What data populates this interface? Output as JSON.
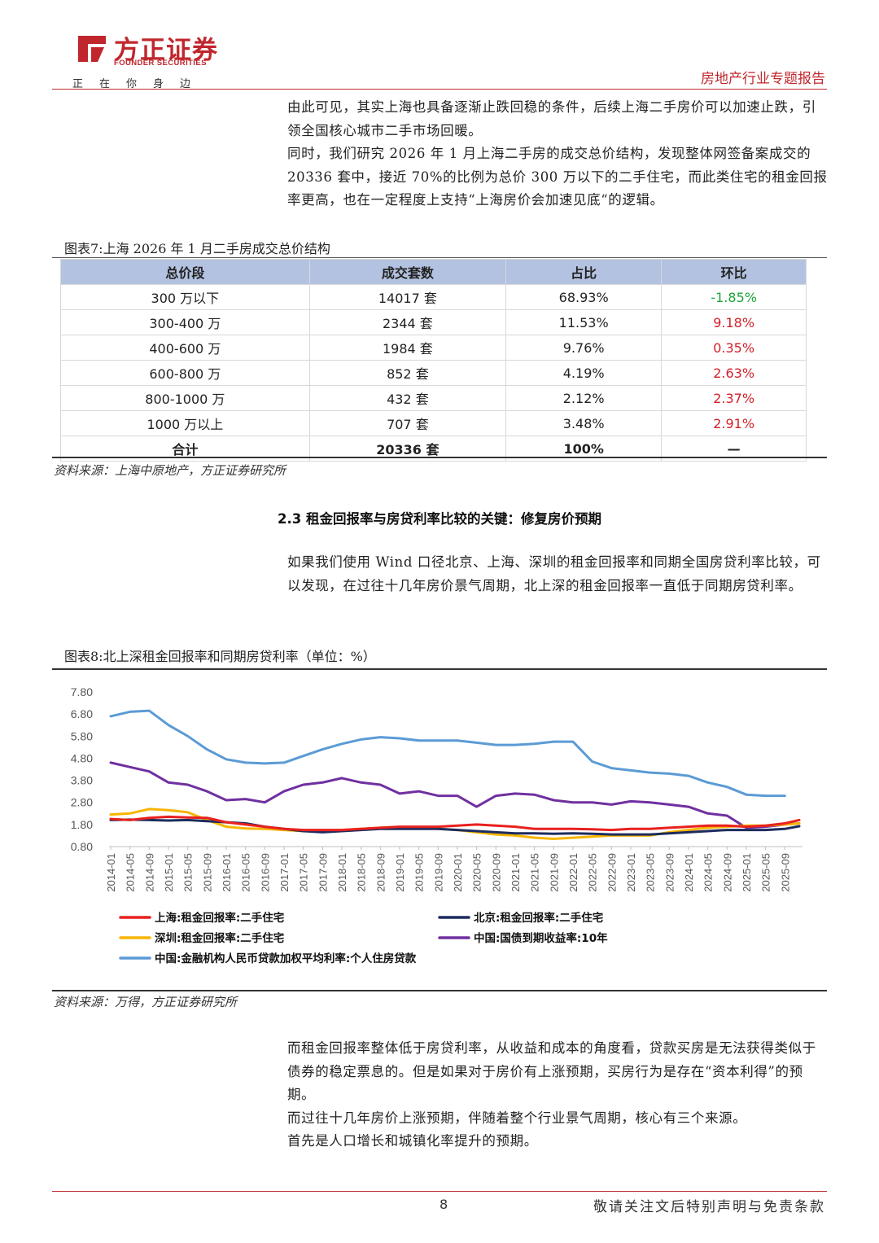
{
  "header": {
    "logo_cn": "方正证券",
    "logo_en": "FOUNDER SECURITIES",
    "slogan": "正在你身边",
    "report_type": "房地产行业专题报告"
  },
  "intro_paragraphs": [
    "由此可见，其实上海也具备逐渐止跌回稳的条件，后续上海二手房价可以加速止跌，引领全国核心城市二手市场回暖。",
    "同时，我们研究 2026 年 1 月上海二手房的成交总价结构，发现整体网签备案成交的 20336 套中，接近 70%的比例为总价 300 万以下的二手住宅，而此类住宅的租金回报率更高，也在一定程度上支持“上海房价会加速见底“的逻辑。"
  ],
  "table7": {
    "caption": "图表7:上海 2026 年 1 月二手房成交总价结构",
    "headers": [
      "总价段",
      "成交套数",
      "占比",
      "环比"
    ],
    "rows": [
      [
        "300 万以下",
        "14017 套",
        "68.93%",
        "-1.85%"
      ],
      [
        "300-400 万",
        "2344 套",
        "11.53%",
        "9.18%"
      ],
      [
        "400-600 万",
        "1984 套",
        "9.76%",
        "0.35%"
      ],
      [
        "600-800 万",
        "852 套",
        "4.19%",
        "2.63%"
      ],
      [
        "800-1000 万",
        "432 套",
        "2.12%",
        "2.37%"
      ],
      [
        "1000 万以上",
        "707 套",
        "3.48%",
        "2.91%"
      ],
      [
        "合计",
        "20336 套",
        "100%",
        "—"
      ]
    ],
    "source": "资料来源：上海中原地产，方正证券研究所"
  },
  "section_heading": "2.3 租金回报率与房贷利率比较的关键：修复房价预期",
  "section_paragraph": "如果我们使用 Wind 口径北京、上海、深圳的租金回报率和同期全国房贷利率比较，可以发现，在过往十几年房价景气周期，北上深的租金回报率一直低于同期房贷利率。",
  "chart8_caption": "图表8:北上深租金回报率和同期房贷利率（单位：%）",
  "chart_data": {
    "type": "line",
    "title": "",
    "xlabel": "",
    "ylabel": "",
    "ylim": [
      0.8,
      7.8
    ],
    "yticks": [
      "7.80",
      "6.80",
      "5.80",
      "4.80",
      "3.80",
      "2.80",
      "1.80",
      "0.80"
    ],
    "x_tick_labels": [
      "2014-01",
      "2014-05",
      "2014-09",
      "2015-01",
      "2015-05",
      "2015-09",
      "2016-01",
      "2016-05",
      "2016-09",
      "2017-01",
      "2017-05",
      "2017-09",
      "2018-01",
      "2018-05",
      "2018-09",
      "2019-01",
      "2019-05",
      "2019-09",
      "2020-01",
      "2020-05",
      "2020-09",
      "2021-01",
      "2021-05",
      "2021-09",
      "2022-01",
      "2022-05",
      "2022-09",
      "2023-01",
      "2023-05",
      "2023-09",
      "2024-01",
      "2024-05",
      "2024-09",
      "2025-01",
      "2025-05",
      "2025-09"
    ],
    "x": [
      "2014-01",
      "2014-05",
      "2014-09",
      "2015-01",
      "2015-05",
      "2015-09",
      "2016-01",
      "2016-05",
      "2016-09",
      "2017-01",
      "2017-05",
      "2017-09",
      "2018-01",
      "2018-05",
      "2018-09",
      "2019-01",
      "2019-05",
      "2019-09",
      "2020-01",
      "2020-05",
      "2020-09",
      "2021-01",
      "2021-05",
      "2021-09",
      "2022-01",
      "2022-05",
      "2022-09",
      "2023-01",
      "2023-05",
      "2023-09",
      "2024-01",
      "2024-05",
      "2024-09",
      "2025-01",
      "2025-05",
      "2025-09",
      "2025-12"
    ],
    "grid": false,
    "legend_position": "bottom",
    "series": [
      {
        "name": "上海:租金回报率:二手住宅",
        "color": "#e8211e",
        "values": [
          2.05,
          2.0,
          2.1,
          2.15,
          2.12,
          2.1,
          1.9,
          1.8,
          1.7,
          1.6,
          1.55,
          1.55,
          1.55,
          1.6,
          1.65,
          1.7,
          1.7,
          1.7,
          1.75,
          1.8,
          1.75,
          1.7,
          1.6,
          1.6,
          1.6,
          1.58,
          1.55,
          1.6,
          1.6,
          1.65,
          1.7,
          1.75,
          1.75,
          1.7,
          1.75,
          1.85,
          2.0
        ]
      },
      {
        "name": "北京:租金回报率:二手住宅",
        "color": "#1d2c5e",
        "values": [
          2.0,
          2.02,
          2.0,
          1.98,
          2.0,
          1.95,
          1.9,
          1.85,
          1.7,
          1.6,
          1.5,
          1.45,
          1.5,
          1.55,
          1.6,
          1.6,
          1.6,
          1.6,
          1.55,
          1.5,
          1.45,
          1.4,
          1.4,
          1.38,
          1.4,
          1.38,
          1.35,
          1.35,
          1.35,
          1.4,
          1.45,
          1.5,
          1.55,
          1.55,
          1.55,
          1.6,
          1.72
        ]
      },
      {
        "name": "深圳:租金回报率:二手住宅",
        "color": "#f7b500",
        "values": [
          2.25,
          2.3,
          2.5,
          2.45,
          2.35,
          2.0,
          1.7,
          1.62,
          1.6,
          1.55,
          1.5,
          1.5,
          1.55,
          1.6,
          1.65,
          1.65,
          1.65,
          1.6,
          1.55,
          1.45,
          1.35,
          1.3,
          1.2,
          1.15,
          1.2,
          1.25,
          1.3,
          1.3,
          1.3,
          1.45,
          1.55,
          1.65,
          1.7,
          1.75,
          1.75,
          1.8,
          1.85
        ]
      },
      {
        "name": "中国:国债到期收益率:10年",
        "color": "#7030a0",
        "values": [
          4.6,
          4.4,
          4.2,
          3.7,
          3.6,
          3.3,
          2.9,
          2.95,
          2.8,
          3.3,
          3.6,
          3.7,
          3.9,
          3.7,
          3.6,
          3.2,
          3.3,
          3.1,
          3.1,
          2.6,
          3.1,
          3.2,
          3.15,
          2.9,
          2.8,
          2.8,
          2.7,
          2.85,
          2.8,
          2.7,
          2.6,
          2.3,
          2.2,
          1.65,
          1.7,
          1.8,
          1.85
        ]
      },
      {
        "name": "中国:金融机构人民币贷款加权平均利率:个人住房贷款",
        "color": "#5b9bd5",
        "values": [
          6.7,
          6.9,
          6.95,
          6.3,
          5.8,
          5.2,
          4.75,
          4.6,
          4.56,
          4.6,
          4.9,
          5.2,
          5.45,
          5.65,
          5.75,
          5.7,
          5.6,
          5.6,
          5.6,
          5.5,
          5.4,
          5.4,
          5.45,
          5.55,
          5.55,
          4.65,
          4.35,
          4.25,
          4.15,
          4.1,
          4.0,
          3.7,
          3.5,
          3.15,
          3.1,
          3.1,
          null
        ]
      }
    ]
  },
  "chart8_source": "资料来源：万得，方正证券研究所",
  "closing_paragraphs": [
    "而租金回报率整体低于房贷利率，从收益和成本的角度看，贷款买房是无法获得类似于债券的稳定票息的。但是如果对于房价有上涨预期，买房行为是存在“资本利得”的预期。",
    "而过往十几年房价上涨预期，伴随着整个行业景气周期，核心有三个来源。",
    "首先是人口增长和城镇化率提升的预期。"
  ],
  "footer": {
    "page_number": "8",
    "disclaimer": "敬请关注文后特别声明与免责条款"
  }
}
